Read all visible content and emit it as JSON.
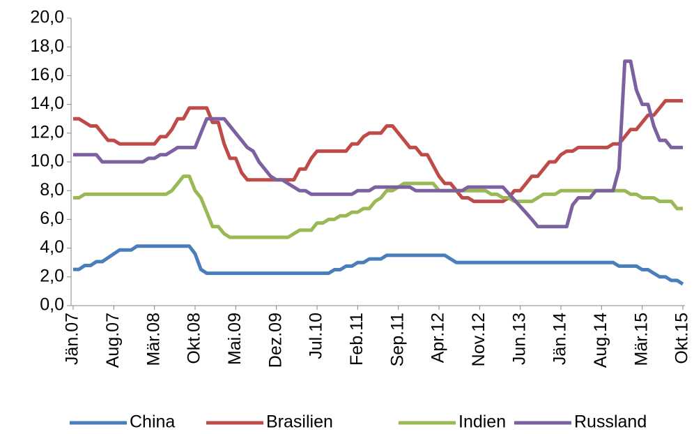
{
  "chart_data": {
    "type": "line",
    "categories": [
      "Jän.07",
      null,
      null,
      null,
      null,
      null,
      null,
      "Aug.07",
      null,
      null,
      null,
      null,
      null,
      null,
      "Mär.08",
      null,
      null,
      null,
      null,
      null,
      null,
      "Okt.08",
      null,
      null,
      null,
      null,
      null,
      null,
      "Mai.09",
      null,
      null,
      null,
      null,
      null,
      null,
      "Dez.09",
      null,
      null,
      null,
      null,
      null,
      null,
      "Jul.10",
      null,
      null,
      null,
      null,
      null,
      null,
      "Feb.11",
      null,
      null,
      null,
      null,
      null,
      null,
      "Sep.11",
      null,
      null,
      null,
      null,
      null,
      null,
      "Apr.12",
      null,
      null,
      null,
      null,
      null,
      null,
      "Nov.12",
      null,
      null,
      null,
      null,
      null,
      null,
      "Jun.13",
      null,
      null,
      null,
      null,
      null,
      null,
      "Jän.14",
      null,
      null,
      null,
      null,
      null,
      null,
      "Aug.14",
      null,
      null,
      null,
      null,
      null,
      null,
      "Mär.15",
      null,
      null,
      null,
      null,
      null,
      null,
      "Okt.15"
    ],
    "series": [
      {
        "name": "China",
        "color": "#4a7ebb",
        "values": [
          2.52,
          2.52,
          2.79,
          2.79,
          3.06,
          3.06,
          3.33,
          3.6,
          3.87,
          3.87,
          3.87,
          4.14,
          4.14,
          4.14,
          4.14,
          4.14,
          4.14,
          4.14,
          4.14,
          4.14,
          4.14,
          3.6,
          2.52,
          2.25,
          2.25,
          2.25,
          2.25,
          2.25,
          2.25,
          2.25,
          2.25,
          2.25,
          2.25,
          2.25,
          2.25,
          2.25,
          2.25,
          2.25,
          2.25,
          2.25,
          2.25,
          2.25,
          2.25,
          2.25,
          2.25,
          2.5,
          2.5,
          2.75,
          2.75,
          3.0,
          3.0,
          3.25,
          3.25,
          3.25,
          3.5,
          3.5,
          3.5,
          3.5,
          3.5,
          3.5,
          3.5,
          3.5,
          3.5,
          3.5,
          3.5,
          3.25,
          3.0,
          3.0,
          3.0,
          3.0,
          3.0,
          3.0,
          3.0,
          3.0,
          3.0,
          3.0,
          3.0,
          3.0,
          3.0,
          3.0,
          3.0,
          3.0,
          3.0,
          3.0,
          3.0,
          3.0,
          3.0,
          3.0,
          3.0,
          3.0,
          3.0,
          3.0,
          3.0,
          3.0,
          2.75,
          2.75,
          2.75,
          2.75,
          2.5,
          2.5,
          2.25,
          2.0,
          2.0,
          1.75,
          1.75,
          1.5
        ]
      },
      {
        "name": "Brasilien",
        "color": "#be4b48",
        "values": [
          13.0,
          13.0,
          12.75,
          12.5,
          12.5,
          12.0,
          11.5,
          11.5,
          11.25,
          11.25,
          11.25,
          11.25,
          11.25,
          11.25,
          11.25,
          11.75,
          11.75,
          12.25,
          13.0,
          13.0,
          13.75,
          13.75,
          13.75,
          13.75,
          12.75,
          12.75,
          11.25,
          10.25,
          10.25,
          9.25,
          8.75,
          8.75,
          8.75,
          8.75,
          8.75,
          8.75,
          8.75,
          8.75,
          8.75,
          9.5,
          9.5,
          10.25,
          10.75,
          10.75,
          10.75,
          10.75,
          10.75,
          10.75,
          11.25,
          11.25,
          11.75,
          12.0,
          12.0,
          12.0,
          12.5,
          12.5,
          12.0,
          11.5,
          11.0,
          11.0,
          10.5,
          10.5,
          9.75,
          9.0,
          8.5,
          8.5,
          8.0,
          7.5,
          7.5,
          7.25,
          7.25,
          7.25,
          7.25,
          7.25,
          7.25,
          7.5,
          8.0,
          8.0,
          8.5,
          9.0,
          9.0,
          9.5,
          10.0,
          10.0,
          10.5,
          10.75,
          10.75,
          11.0,
          11.0,
          11.0,
          11.0,
          11.0,
          11.0,
          11.25,
          11.25,
          11.75,
          12.25,
          12.25,
          12.75,
          13.25,
          13.25,
          13.75,
          14.25,
          14.25,
          14.25,
          14.25
        ]
      },
      {
        "name": "Indien",
        "color": "#98b954",
        "values": [
          7.5,
          7.5,
          7.75,
          7.75,
          7.75,
          7.75,
          7.75,
          7.75,
          7.75,
          7.75,
          7.75,
          7.75,
          7.75,
          7.75,
          7.75,
          7.75,
          7.75,
          8.0,
          8.5,
          9.0,
          9.0,
          8.0,
          7.5,
          6.5,
          5.5,
          5.5,
          5.0,
          4.75,
          4.75,
          4.75,
          4.75,
          4.75,
          4.75,
          4.75,
          4.75,
          4.75,
          4.75,
          4.75,
          5.0,
          5.25,
          5.25,
          5.25,
          5.75,
          5.75,
          6.0,
          6.0,
          6.25,
          6.25,
          6.5,
          6.5,
          6.75,
          6.75,
          7.25,
          7.5,
          8.0,
          8.0,
          8.25,
          8.5,
          8.5,
          8.5,
          8.5,
          8.5,
          8.5,
          8.0,
          8.0,
          8.0,
          8.0,
          8.0,
          8.0,
          8.0,
          8.0,
          8.0,
          7.75,
          7.75,
          7.5,
          7.5,
          7.25,
          7.25,
          7.25,
          7.25,
          7.5,
          7.75,
          7.75,
          7.75,
          8.0,
          8.0,
          8.0,
          8.0,
          8.0,
          8.0,
          8.0,
          8.0,
          8.0,
          8.0,
          8.0,
          8.0,
          7.75,
          7.75,
          7.5,
          7.5,
          7.5,
          7.25,
          7.25,
          7.25,
          6.75,
          6.75
        ]
      },
      {
        "name": "Russland",
        "color": "#7d60a0",
        "values": [
          10.5,
          10.5,
          10.5,
          10.5,
          10.5,
          10.0,
          10.0,
          10.0,
          10.0,
          10.0,
          10.0,
          10.0,
          10.0,
          10.25,
          10.25,
          10.5,
          10.5,
          10.75,
          11.0,
          11.0,
          11.0,
          11.0,
          12.0,
          13.0,
          13.0,
          13.0,
          13.0,
          12.5,
          12.0,
          11.5,
          11.0,
          10.75,
          10.0,
          9.5,
          9.0,
          8.75,
          8.75,
          8.5,
          8.25,
          8.0,
          8.0,
          7.75,
          7.75,
          7.75,
          7.75,
          7.75,
          7.75,
          7.75,
          7.75,
          8.0,
          8.0,
          8.0,
          8.25,
          8.25,
          8.25,
          8.25,
          8.25,
          8.25,
          8.25,
          8.0,
          8.0,
          8.0,
          8.0,
          8.0,
          8.0,
          8.0,
          8.0,
          8.0,
          8.25,
          8.25,
          8.25,
          8.25,
          8.25,
          8.25,
          8.25,
          7.8,
          7.35,
          6.9,
          6.45,
          6.0,
          5.5,
          5.5,
          5.5,
          5.5,
          5.5,
          5.5,
          7.0,
          7.5,
          7.5,
          7.5,
          8.0,
          8.0,
          8.0,
          8.0,
          9.5,
          17.0,
          17.0,
          15.0,
          14.0,
          14.0,
          12.5,
          11.5,
          11.5,
          11.0,
          11.0,
          11.0
        ]
      }
    ],
    "ylim": [
      0,
      20
    ],
    "yticks": [
      {
        "value": 0,
        "label": "0,0"
      },
      {
        "value": 2,
        "label": "2,0"
      },
      {
        "value": 4,
        "label": "4,0"
      },
      {
        "value": 6,
        "label": "6,0"
      },
      {
        "value": 8,
        "label": "8,0"
      },
      {
        "value": 10,
        "label": "10,0"
      },
      {
        "value": 12,
        "label": "12,0"
      },
      {
        "value": 14,
        "label": "14,0"
      },
      {
        "value": 16,
        "label": "16,0"
      },
      {
        "value": 18,
        "label": "18,0"
      },
      {
        "value": 20,
        "label": "20,0"
      }
    ],
    "grid": false,
    "legend": "bottom"
  }
}
